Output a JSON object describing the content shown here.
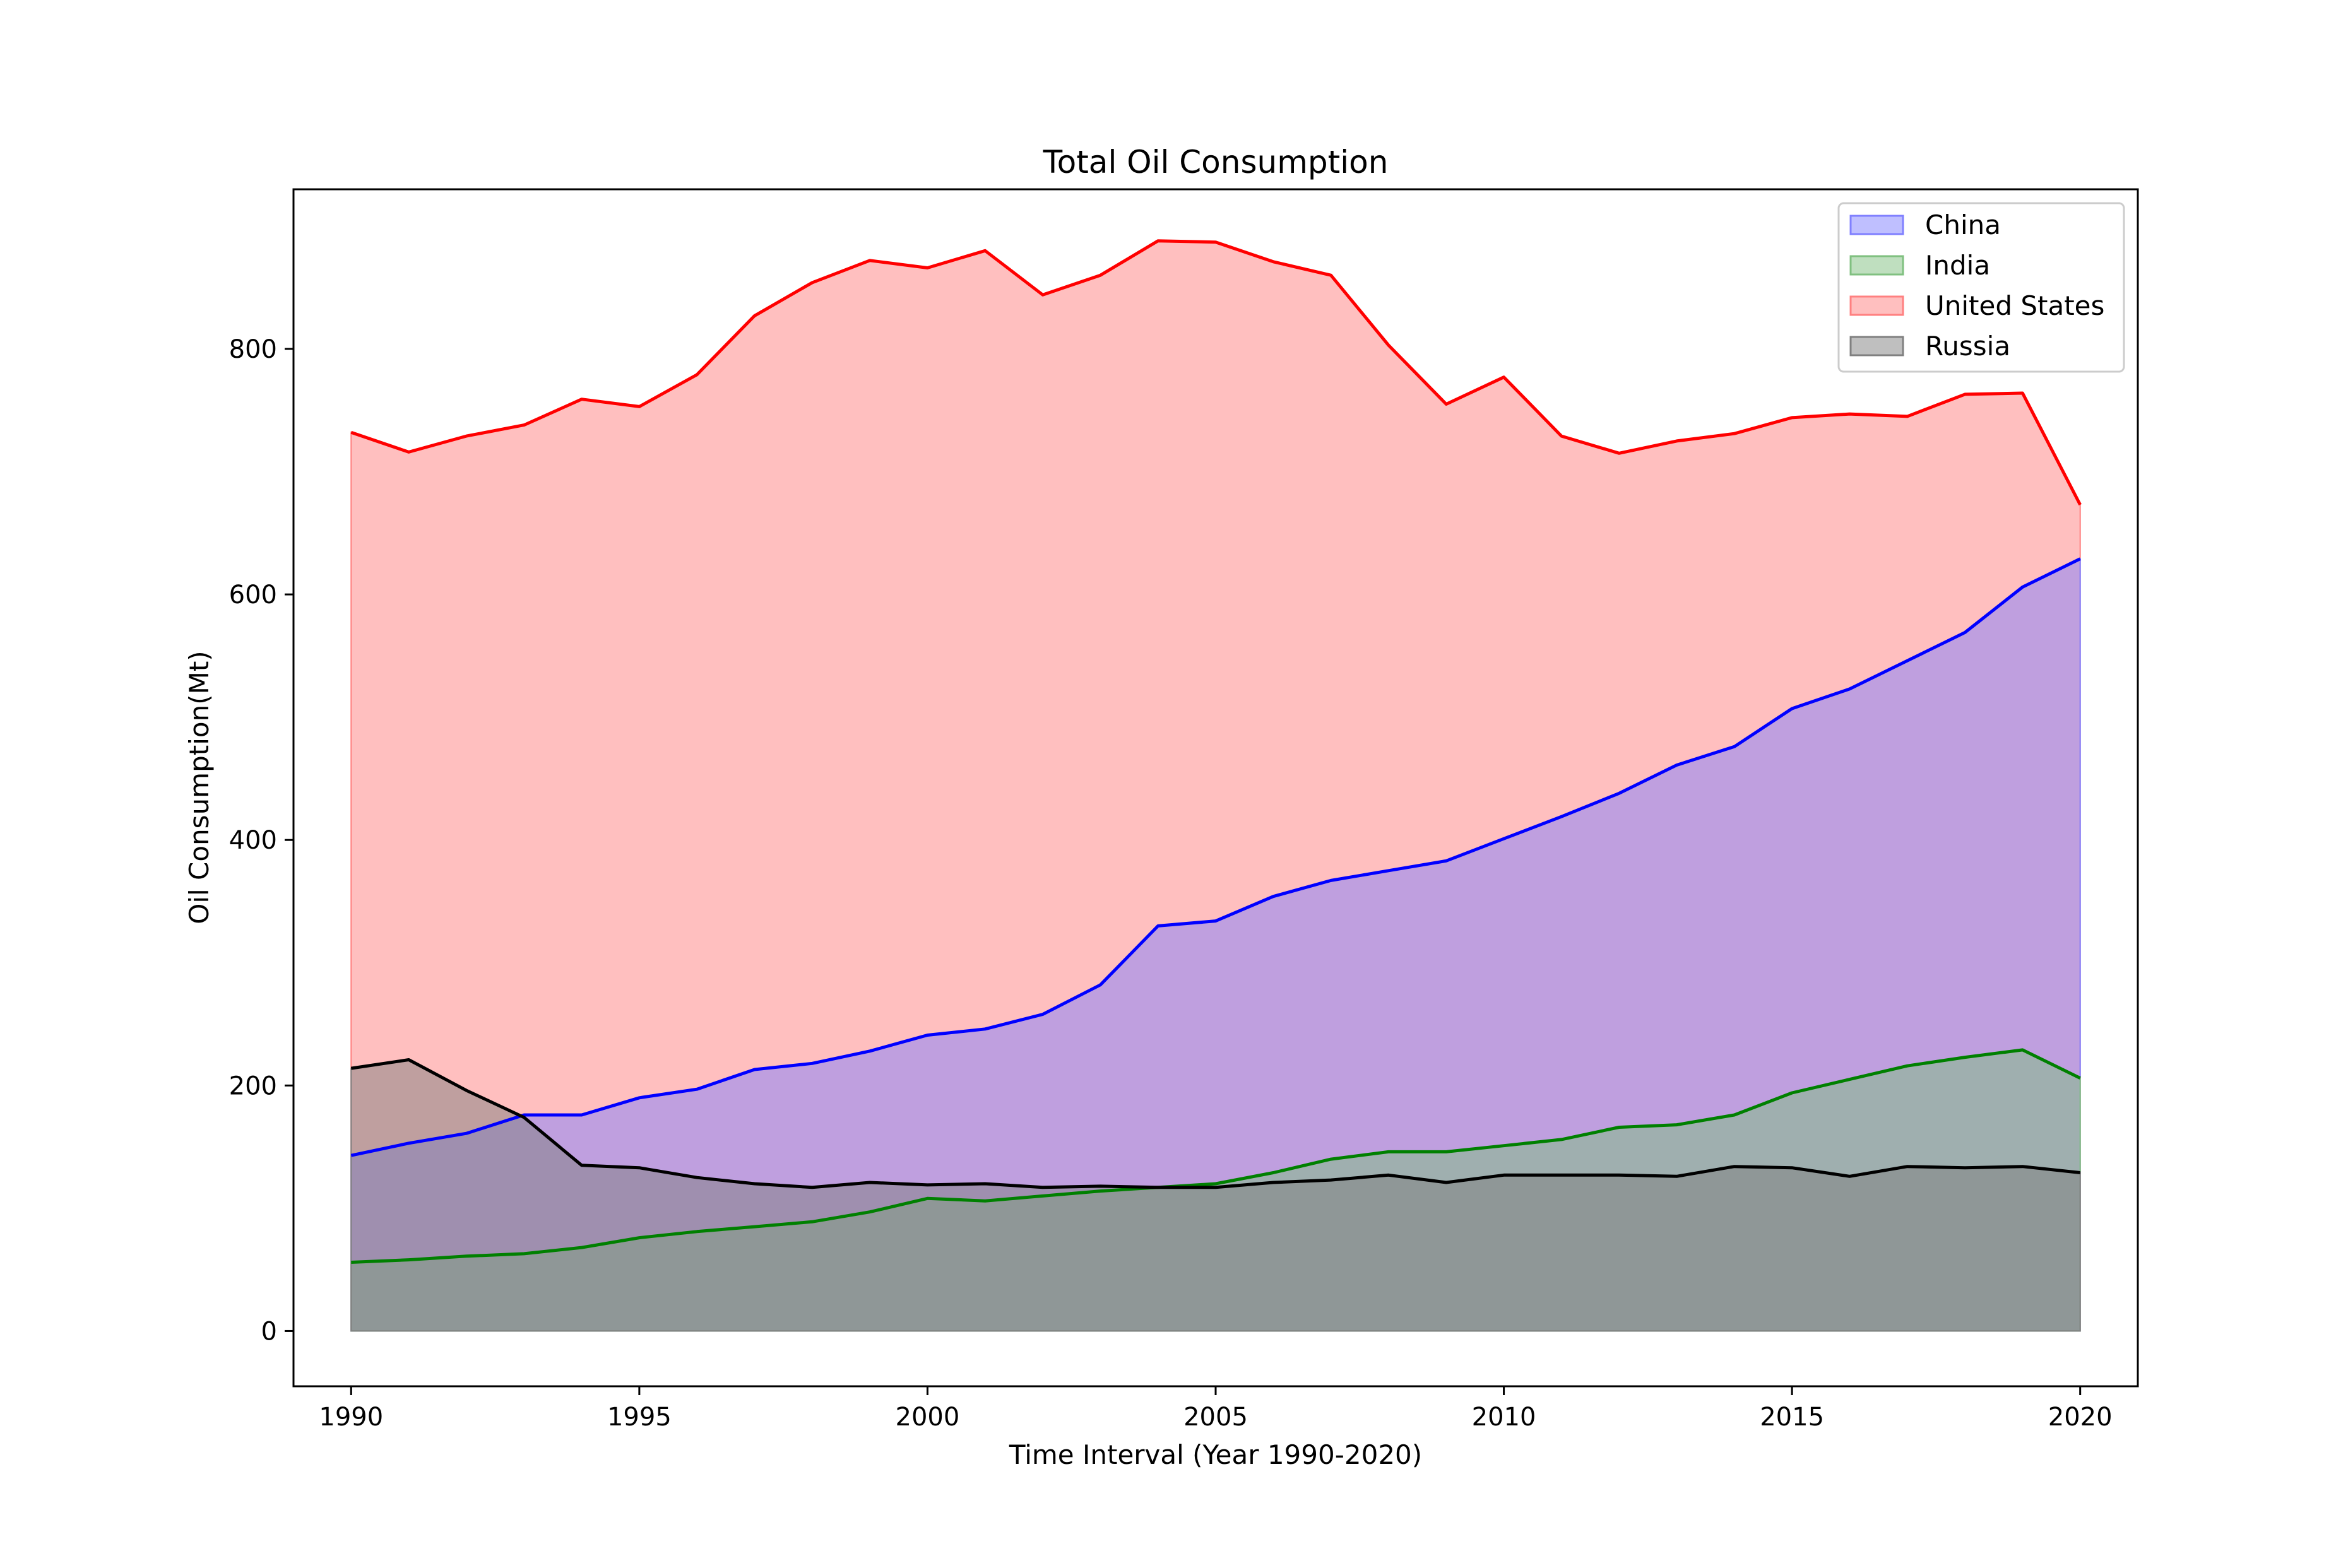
{
  "chart_data": {
    "type": "area",
    "title": "Total Oil Consumption",
    "xlabel": "Time Interval (Year 1990-2020)",
    "ylabel": "Oil Consumption(Mt)",
    "xlim": [
      1989,
      2021
    ],
    "ylim": [
      -45,
      930
    ],
    "xticks": [
      1990,
      1995,
      2000,
      2005,
      2010,
      2015,
      2020
    ],
    "yticks": [
      0,
      200,
      400,
      600,
      800
    ],
    "grid": false,
    "legend_position": "top-right",
    "x": [
      1990,
      1991,
      1992,
      1993,
      1994,
      1995,
      1996,
      1997,
      1998,
      1999,
      2000,
      2001,
      2002,
      2003,
      2004,
      2005,
      2006,
      2007,
      2008,
      2009,
      2010,
      2011,
      2012,
      2013,
      2014,
      2015,
      2016,
      2017,
      2018,
      2019,
      2020
    ],
    "series": [
      {
        "name": "United States",
        "line_color": "#ff0000",
        "fill_color": "#ff8080",
        "values": [
          732,
          716,
          729,
          738,
          759,
          753,
          779,
          827,
          854,
          872,
          866,
          880,
          844,
          860,
          888,
          887,
          871,
          860,
          803,
          755,
          777,
          729,
          715,
          725,
          731,
          744,
          747,
          745,
          763,
          764,
          673
        ]
      },
      {
        "name": "China",
        "line_color": "#0000ff",
        "fill_color": "#8080ff",
        "values": [
          143,
          153,
          161,
          176,
          176,
          190,
          197,
          213,
          218,
          228,
          241,
          246,
          258,
          282,
          330,
          334,
          354,
          367,
          375,
          383,
          401,
          419,
          438,
          461,
          476,
          507,
          523,
          546,
          569,
          606,
          629
        ]
      },
      {
        "name": "India",
        "line_color": "#008000",
        "fill_color": "#80c080",
        "values": [
          56,
          58,
          61,
          63,
          68,
          76,
          81,
          85,
          89,
          97,
          108,
          106,
          110,
          114,
          117,
          120,
          129,
          140,
          146,
          146,
          151,
          156,
          166,
          168,
          176,
          194,
          205,
          216,
          223,
          229,
          206
        ]
      },
      {
        "name": "Russia",
        "line_color": "#000000",
        "fill_color": "#808080",
        "values": [
          214,
          221,
          196,
          174,
          135,
          133,
          125,
          120,
          117,
          121,
          119,
          120,
          117,
          118,
          117,
          117,
          121,
          123,
          127,
          121,
          127,
          127,
          127,
          126,
          134,
          133,
          126,
          134,
          133,
          134,
          129
        ]
      }
    ],
    "legend": [
      "China",
      "India",
      "United States",
      "Russia"
    ]
  }
}
